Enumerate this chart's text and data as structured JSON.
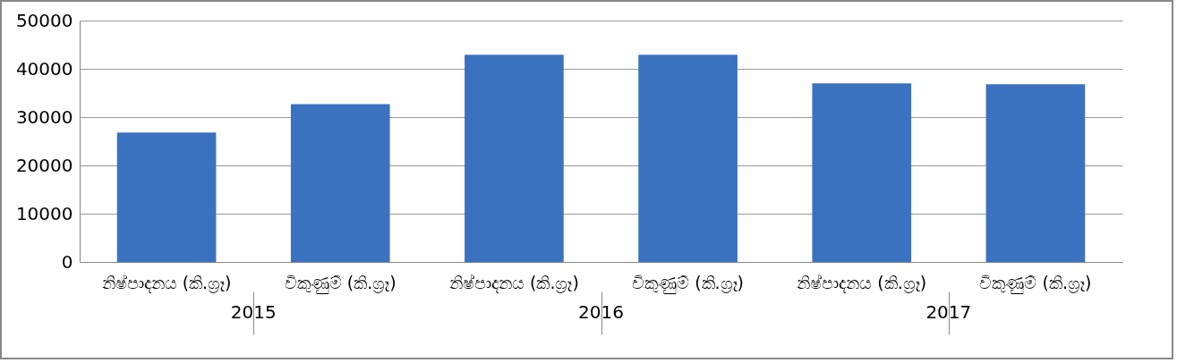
{
  "chart_data": {
    "type": "bar",
    "categories": [
      "නිෂ්පාදනය (කි.ග්‍රෑ)",
      "විකුණුම් (කි.ග්‍රෑ)",
      "නිෂ්පාදනය (කි.ග්‍රෑ)",
      "විකුණුම් (කි.ග්‍රෑ)",
      "නිෂ්පාදනය (කි.ග්‍රෑ)",
      "විකුණුම් (කි.ග්‍රෑ)"
    ],
    "values": [
      26800,
      32700,
      42900,
      42900,
      37000,
      36800
    ],
    "color": "#3a72c0",
    "ylim": [
      0,
      50000
    ],
    "yticks": [
      0,
      10000,
      20000,
      30000,
      40000,
      50000
    ],
    "grid": "y",
    "annotations": [
      "2015",
      "2016",
      "2017"
    ]
  }
}
